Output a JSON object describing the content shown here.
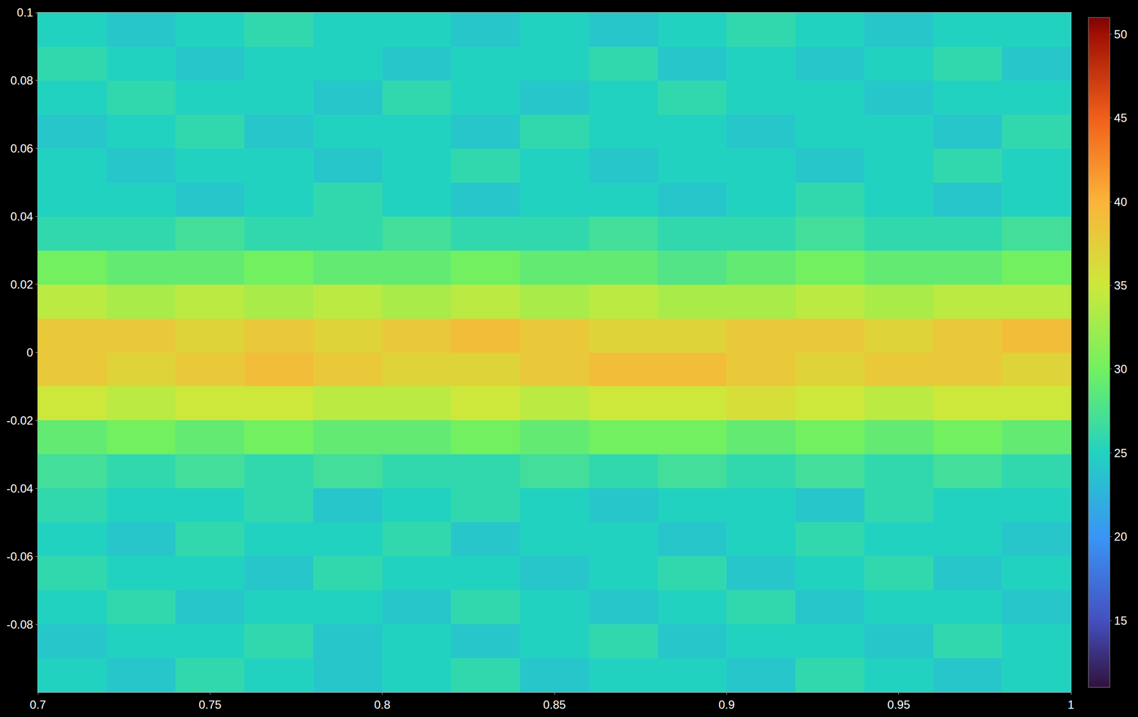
{
  "chart_data": {
    "type": "heatmap",
    "x": [
      0.71,
      0.73,
      0.75,
      0.77,
      0.79,
      0.81,
      0.83,
      0.85,
      0.87,
      0.89,
      0.91,
      0.93,
      0.95,
      0.97,
      0.99
    ],
    "y": [
      -0.095,
      -0.085,
      -0.075,
      -0.065,
      -0.055,
      -0.045,
      -0.035,
      -0.025,
      -0.015,
      -0.005,
      0.005,
      0.015,
      0.025,
      0.035,
      0.045,
      0.055,
      0.065,
      0.075,
      0.085,
      0.095
    ],
    "z": [
      [
        25,
        24,
        26,
        25,
        24,
        25,
        26,
        24,
        25,
        25,
        24,
        26,
        25,
        24,
        25
      ],
      [
        24,
        25,
        25,
        26,
        24,
        25,
        24,
        25,
        26,
        24,
        25,
        25,
        24,
        26,
        25
      ],
      [
        25,
        26,
        24,
        25,
        25,
        24,
        26,
        25,
        24,
        25,
        26,
        24,
        25,
        25,
        24
      ],
      [
        26,
        25,
        25,
        24,
        26,
        25,
        25,
        24,
        25,
        26,
        24,
        25,
        26,
        24,
        25
      ],
      [
        25,
        24,
        26,
        25,
        25,
        26,
        24,
        25,
        25,
        24,
        25,
        26,
        25,
        25,
        24
      ],
      [
        26,
        25,
        25,
        26,
        24,
        25,
        26,
        25,
        24,
        25,
        25,
        24,
        26,
        25,
        25
      ],
      [
        27,
        26,
        27,
        26,
        27,
        26,
        26,
        27,
        26,
        27,
        26,
        27,
        26,
        27,
        26
      ],
      [
        29,
        30,
        29,
        30,
        29,
        29,
        30,
        29,
        30,
        30,
        29,
        30,
        29,
        30,
        29
      ],
      [
        35,
        34,
        35,
        35,
        34,
        34,
        35,
        34,
        35,
        35,
        36,
        35,
        34,
        35,
        35
      ],
      [
        38,
        37,
        38,
        39,
        38,
        37,
        37,
        38,
        39,
        39,
        38,
        37,
        38,
        38,
        37
      ],
      [
        38,
        38,
        37,
        38,
        37,
        38,
        39,
        38,
        37,
        37,
        38,
        38,
        37,
        38,
        39
      ],
      [
        34,
        33,
        34,
        33,
        34,
        33,
        34,
        33,
        34,
        33,
        33,
        34,
        33,
        34,
        34
      ],
      [
        30,
        29,
        29,
        30,
        29,
        29,
        30,
        29,
        29,
        28,
        29,
        30,
        29,
        29,
        30
      ],
      [
        26,
        26,
        27,
        26,
        26,
        27,
        26,
        26,
        27,
        26,
        26,
        27,
        26,
        26,
        27
      ],
      [
        25,
        25,
        24,
        25,
        26,
        25,
        24,
        25,
        25,
        24,
        25,
        26,
        25,
        24,
        25
      ],
      [
        25,
        24,
        25,
        25,
        24,
        25,
        26,
        25,
        24,
        25,
        25,
        24,
        25,
        26,
        25
      ],
      [
        24,
        25,
        26,
        24,
        25,
        25,
        24,
        26,
        25,
        25,
        24,
        25,
        25,
        24,
        26
      ],
      [
        25,
        26,
        25,
        25,
        24,
        26,
        25,
        24,
        25,
        26,
        25,
        25,
        24,
        25,
        25
      ],
      [
        26,
        25,
        24,
        25,
        25,
        24,
        25,
        25,
        26,
        24,
        25,
        24,
        25,
        26,
        24
      ],
      [
        25,
        24,
        25,
        26,
        25,
        25,
        24,
        25,
        24,
        25,
        26,
        25,
        24,
        25,
        25
      ]
    ],
    "xlim": [
      0.7,
      1
    ],
    "ylim": [
      -0.1,
      0.1
    ],
    "xticks": [
      0.7,
      0.75,
      0.8,
      0.85,
      0.9,
      0.95,
      1
    ],
    "yticks": [
      -0.08,
      -0.06,
      -0.04,
      -0.02,
      0,
      0.02,
      0.04,
      0.06,
      0.08,
      0.1
    ],
    "colorbar": {
      "range": [
        11,
        51
      ],
      "ticks": [
        15,
        20,
        25,
        30,
        35,
        40,
        45,
        50
      ]
    },
    "grid": false
  }
}
